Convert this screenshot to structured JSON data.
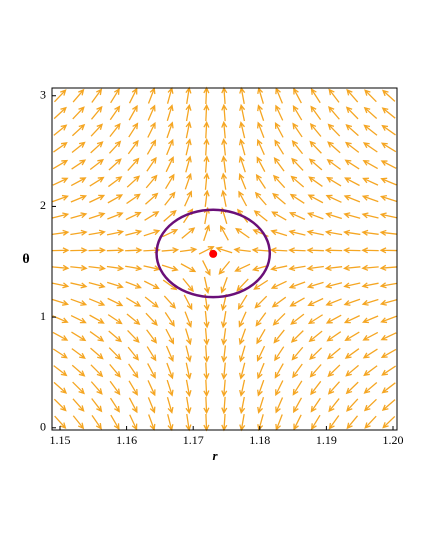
{
  "chart_data": {
    "type": "phase_plot",
    "x_label": "r",
    "y_label": "θ",
    "xlim": [
      1.1488,
      1.2006
    ],
    "ylim": [
      -0.02,
      3.07
    ],
    "xticks": [
      1.15,
      1.16,
      1.17,
      1.18,
      1.19,
      {
        "value": 1.2,
        "label": "1.20"
      }
    ],
    "yticks": [
      0,
      1,
      2,
      3
    ],
    "arrows": {
      "color": "#f5a623",
      "columns": 19,
      "rows": 20
    },
    "equilibrium": {
      "x": 1.173,
      "y": 1.571,
      "color": "#ff0000"
    },
    "ellipse": {
      "cx": 1.173,
      "cy": 1.575,
      "rx": 0.0085,
      "ry": 0.395,
      "color": "#6a0f78"
    }
  }
}
